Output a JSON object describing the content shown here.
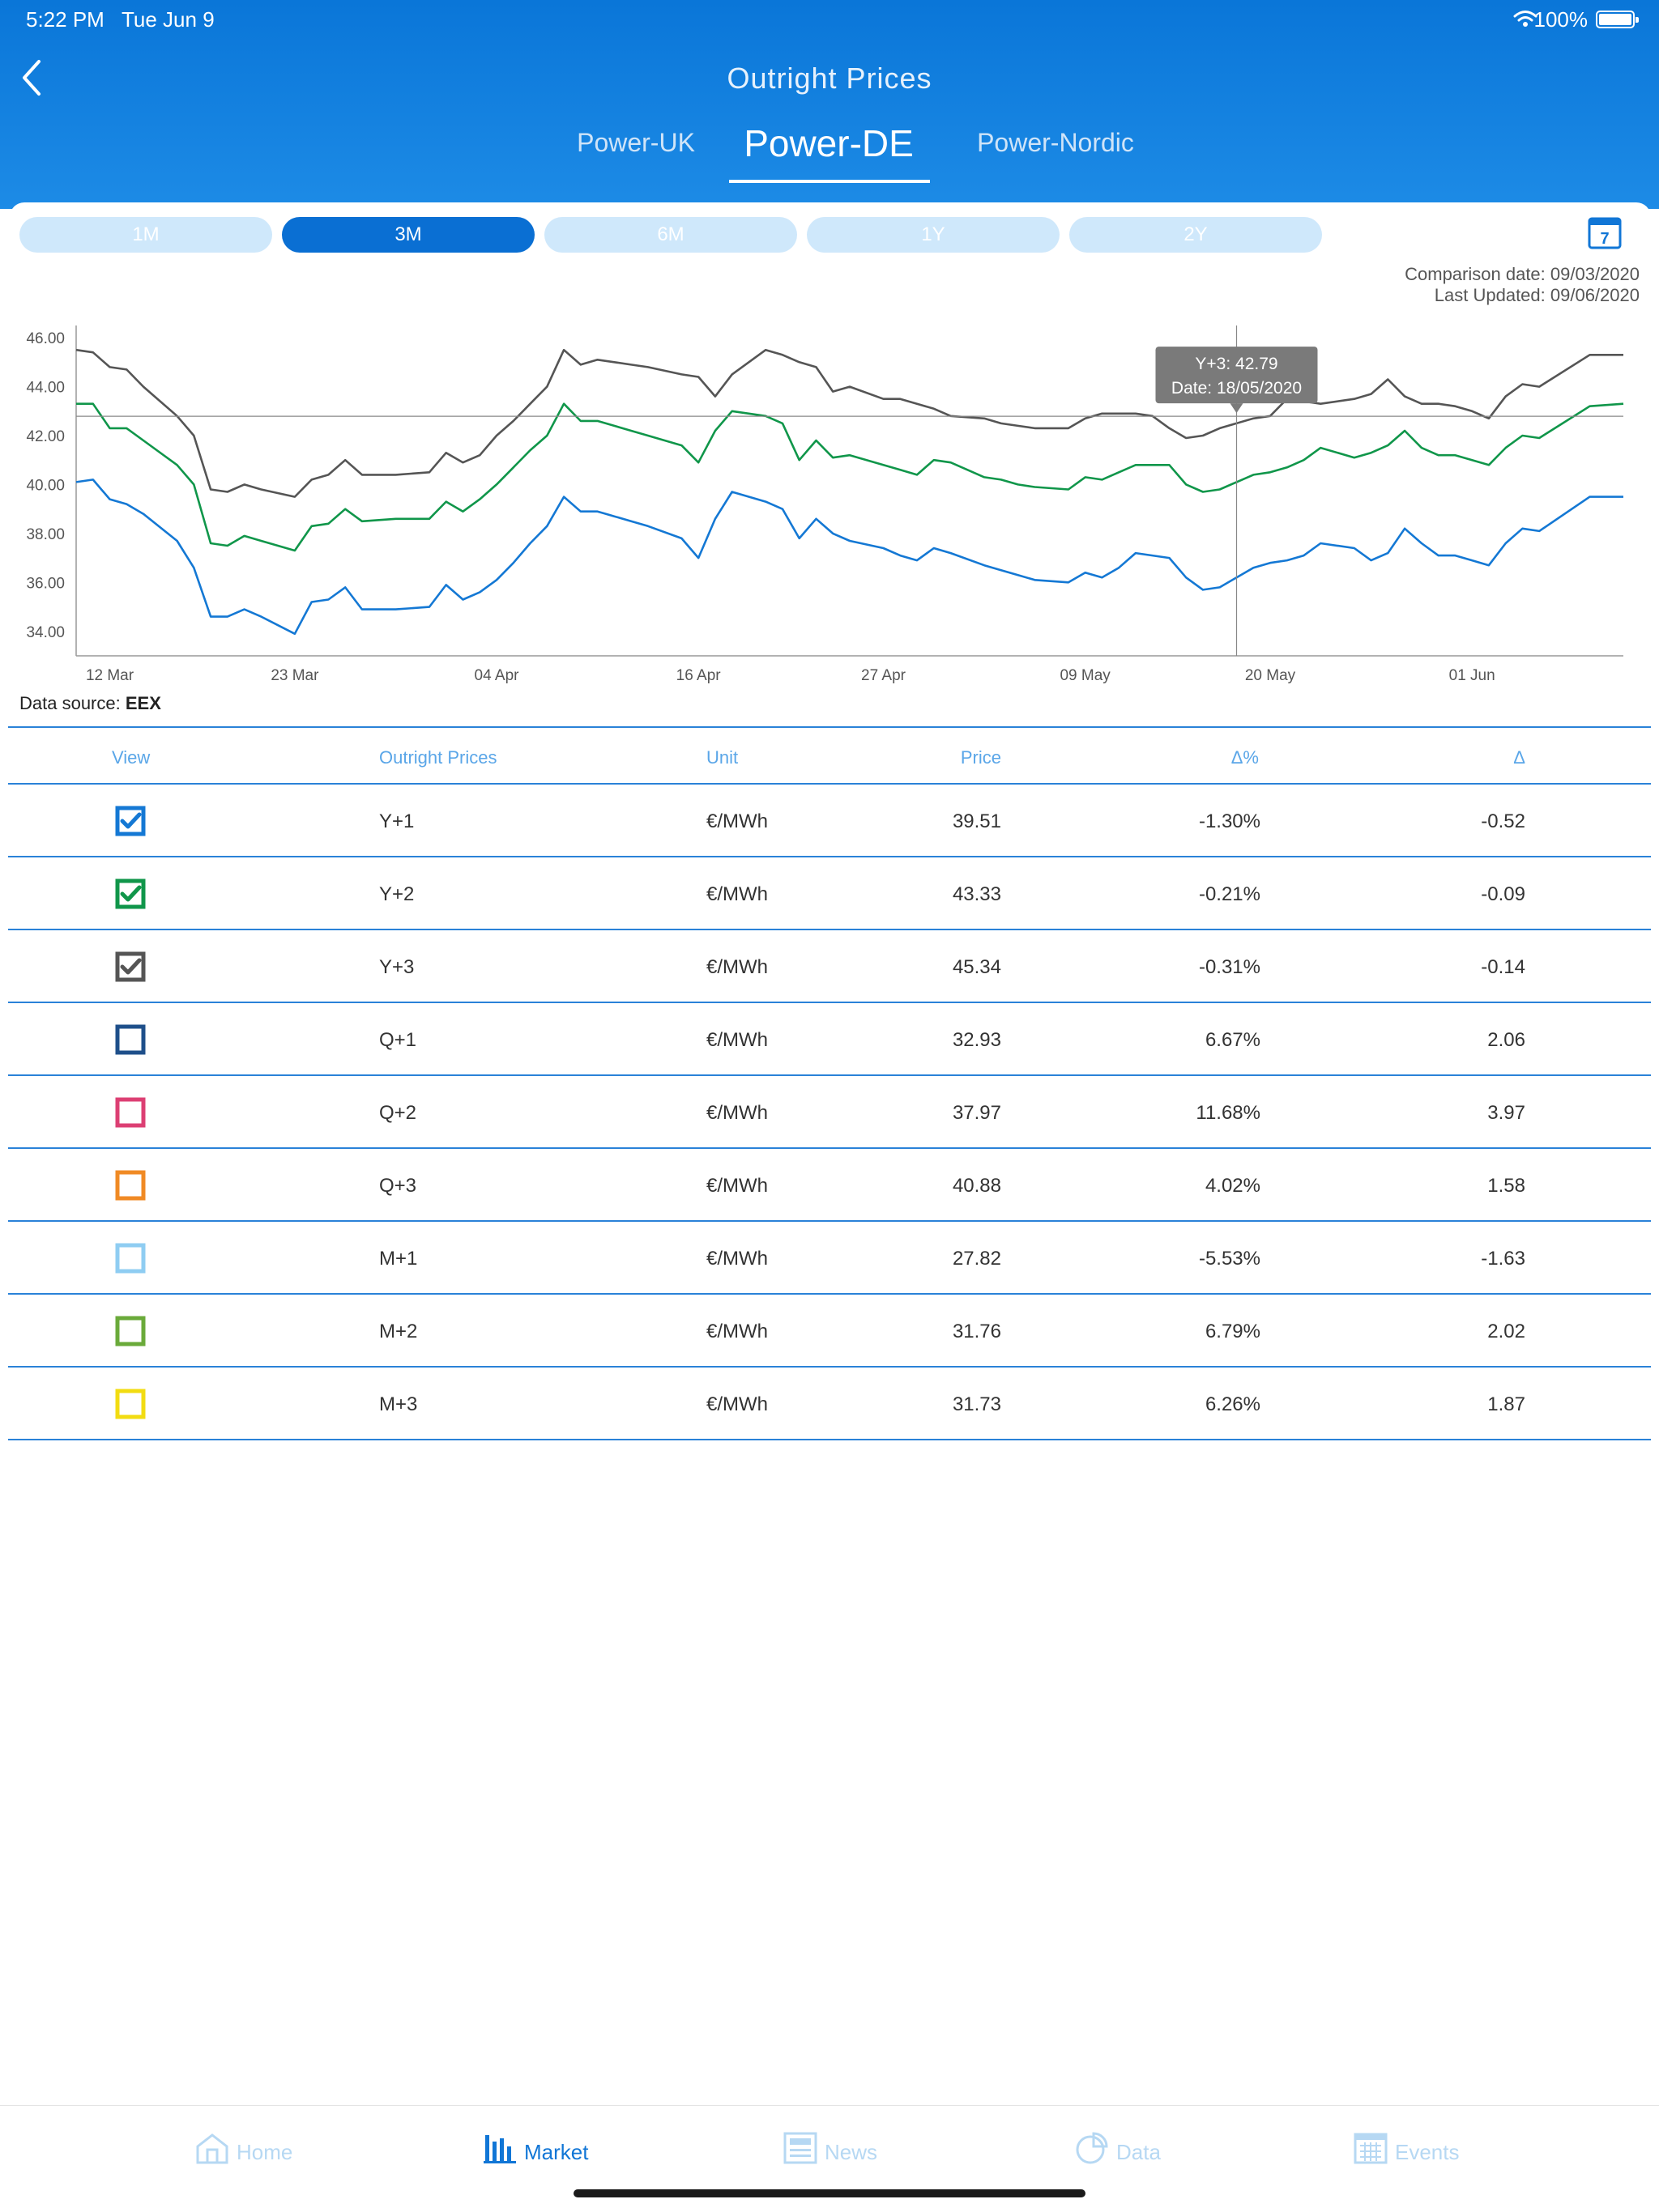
{
  "status_bar": {
    "time": "5:22 PM",
    "date": "Tue Jun 9",
    "battery": "100%"
  },
  "header": {
    "title": "Outright Prices",
    "tabs": [
      {
        "label": "Power-UK"
      },
      {
        "label": "Power-DE"
      },
      {
        "label": "Power-Nordic"
      }
    ],
    "active_tab": "Power-DE"
  },
  "ranges": [
    "1M",
    "3M",
    "6M",
    "1Y",
    "2Y"
  ],
  "active_range": "3M",
  "meta": {
    "comparison_date": "Comparison date: 09/03/2020",
    "last_updated": "Last Updated: 09/06/2020",
    "data_source_label": "Data source: ",
    "data_source_name": "EEX"
  },
  "chart_data": {
    "type": "line",
    "ylim": [
      33,
      46.5
    ],
    "yticks": [
      "46.00",
      "44.00",
      "42.00",
      "40.00",
      "38.00",
      "36.00",
      "34.00"
    ],
    "ytick_values": [
      46,
      44,
      42,
      40,
      38,
      36,
      34
    ],
    "xticks": [
      "12 Mar",
      "23 Mar",
      "04 Apr",
      "16 Apr",
      "27 Apr",
      "09 May",
      "20 May",
      "01 Jun"
    ],
    "xtick_days": [
      2,
      13,
      25,
      37,
      48,
      60,
      71,
      83
    ],
    "x_days_range": [
      0,
      92
    ],
    "x_days_ref": "10 Mar",
    "tooltip": {
      "line1": "Y+3: 42.79",
      "line2": "Date: 18/05/2020",
      "day": 69,
      "value": 42.79
    },
    "series": [
      {
        "name": "Y+3",
        "color": "#555555",
        "x": [
          0,
          1,
          2,
          3,
          4,
          6,
          7,
          8,
          9,
          10,
          11,
          13,
          14,
          15,
          16,
          17,
          19,
          21,
          22,
          23,
          24,
          25,
          26,
          27,
          28,
          29,
          30,
          31,
          32,
          33,
          34,
          36,
          37,
          38,
          39,
          41,
          42,
          43,
          44,
          45,
          46,
          48,
          49,
          50,
          51,
          52,
          54,
          55,
          56,
          57,
          59,
          60,
          61,
          62,
          63,
          64,
          65,
          66,
          67,
          68,
          70,
          71,
          72,
          73,
          74,
          76,
          77,
          78,
          79,
          80,
          81,
          82,
          83,
          84,
          85,
          86,
          87,
          90,
          92
        ],
        "values": [
          45.5,
          45.4,
          44.8,
          44.7,
          44.0,
          42.8,
          42.0,
          39.8,
          39.7,
          40.0,
          39.8,
          39.5,
          40.2,
          40.4,
          41.0,
          40.4,
          40.4,
          40.5,
          41.3,
          40.9,
          41.2,
          42.0,
          42.6,
          43.3,
          44.0,
          45.5,
          44.9,
          45.1,
          45.0,
          44.9,
          44.8,
          44.5,
          44.4,
          43.6,
          44.5,
          45.5,
          45.3,
          45.0,
          44.8,
          43.8,
          44.0,
          43.5,
          43.5,
          43.3,
          43.1,
          42.8,
          42.7,
          42.5,
          42.4,
          42.3,
          42.3,
          42.7,
          42.9,
          42.9,
          42.9,
          42.8,
          42.3,
          41.9,
          42.0,
          42.3,
          42.7,
          42.8,
          43.5,
          43.4,
          43.3,
          43.5,
          43.7,
          44.3,
          43.6,
          43.3,
          43.3,
          43.2,
          43.0,
          42.7,
          43.6,
          44.1,
          44.0,
          45.3,
          45.3
        ]
      },
      {
        "name": "Y+2",
        "color": "#10964a",
        "x": [
          0,
          1,
          2,
          3,
          4,
          6,
          7,
          8,
          9,
          10,
          11,
          13,
          14,
          15,
          16,
          17,
          19,
          21,
          22,
          23,
          24,
          25,
          26,
          27,
          28,
          29,
          30,
          31,
          32,
          33,
          34,
          36,
          37,
          38,
          39,
          41,
          42,
          43,
          44,
          45,
          46,
          48,
          49,
          50,
          51,
          52,
          54,
          55,
          56,
          57,
          59,
          60,
          61,
          62,
          63,
          64,
          65,
          66,
          67,
          68,
          70,
          71,
          72,
          73,
          74,
          76,
          77,
          78,
          79,
          80,
          81,
          82,
          83,
          84,
          85,
          86,
          87,
          90,
          92
        ],
        "values": [
          43.3,
          43.3,
          42.3,
          42.3,
          41.8,
          40.8,
          40.0,
          37.6,
          37.5,
          37.9,
          37.7,
          37.3,
          38.3,
          38.4,
          39.0,
          38.5,
          38.6,
          38.6,
          39.3,
          38.9,
          39.4,
          40.0,
          40.7,
          41.4,
          42.0,
          43.3,
          42.6,
          42.6,
          42.4,
          42.2,
          42.0,
          41.6,
          40.9,
          42.2,
          43.0,
          42.8,
          42.5,
          41.0,
          41.8,
          41.1,
          41.2,
          40.8,
          40.6,
          40.4,
          41.0,
          40.9,
          40.3,
          40.2,
          40.0,
          39.9,
          39.8,
          40.3,
          40.2,
          40.5,
          40.8,
          40.8,
          40.8,
          40.0,
          39.7,
          39.8,
          40.4,
          40.5,
          40.7,
          41.0,
          41.5,
          41.1,
          41.3,
          41.6,
          42.2,
          41.5,
          41.2,
          41.2,
          41.0,
          40.8,
          41.5,
          42.0,
          41.9,
          43.2,
          43.3
        ]
      },
      {
        "name": "Y+1",
        "color": "#1478d4",
        "x": [
          0,
          1,
          2,
          3,
          4,
          6,
          7,
          8,
          9,
          10,
          11,
          13,
          14,
          15,
          16,
          17,
          19,
          21,
          22,
          23,
          24,
          25,
          26,
          27,
          28,
          29,
          30,
          31,
          32,
          33,
          34,
          36,
          37,
          38,
          39,
          41,
          42,
          43,
          44,
          45,
          46,
          48,
          49,
          50,
          51,
          52,
          54,
          55,
          56,
          57,
          59,
          60,
          61,
          62,
          63,
          64,
          65,
          66,
          67,
          68,
          70,
          71,
          72,
          73,
          74,
          76,
          77,
          78,
          79,
          80,
          81,
          82,
          83,
          84,
          85,
          86,
          87,
          90,
          92
        ],
        "values": [
          40.1,
          40.2,
          39.4,
          39.2,
          38.8,
          37.7,
          36.6,
          34.6,
          34.6,
          34.9,
          34.6,
          33.9,
          35.2,
          35.3,
          35.8,
          34.9,
          34.9,
          35.0,
          35.9,
          35.3,
          35.6,
          36.1,
          36.8,
          37.6,
          38.3,
          39.5,
          38.9,
          38.9,
          38.7,
          38.5,
          38.3,
          37.8,
          37.0,
          38.6,
          39.7,
          39.3,
          39.0,
          37.8,
          38.6,
          38.0,
          37.7,
          37.4,
          37.1,
          36.9,
          37.4,
          37.2,
          36.7,
          36.5,
          36.3,
          36.1,
          36.0,
          36.4,
          36.2,
          36.6,
          37.2,
          37.1,
          37.0,
          36.2,
          35.7,
          35.8,
          36.6,
          36.8,
          36.9,
          37.1,
          37.6,
          37.4,
          36.9,
          37.2,
          38.2,
          37.6,
          37.1,
          37.1,
          36.9,
          36.7,
          37.6,
          38.2,
          38.1,
          39.5,
          39.5
        ]
      }
    ]
  },
  "table": {
    "headers": {
      "view": "View",
      "name": "Outright Prices",
      "unit": "Unit",
      "price": "Price",
      "pct": "Δ%",
      "delta": "Δ"
    },
    "rows": [
      {
        "name": "Y+1",
        "unit": "€/MWh",
        "price": "39.51",
        "pct": "-1.30%",
        "delta": "-0.52",
        "checked": true,
        "color": "#1478d4"
      },
      {
        "name": "Y+2",
        "unit": "€/MWh",
        "price": "43.33",
        "pct": "-0.21%",
        "delta": "-0.09",
        "checked": true,
        "color": "#10964a"
      },
      {
        "name": "Y+3",
        "unit": "€/MWh",
        "price": "45.34",
        "pct": "-0.31%",
        "delta": "-0.14",
        "checked": true,
        "color": "#555555"
      },
      {
        "name": "Q+1",
        "unit": "€/MWh",
        "price": "32.93",
        "pct": "6.67%",
        "delta": "2.06",
        "checked": false,
        "color": "#1e4f8a"
      },
      {
        "name": "Q+2",
        "unit": "€/MWh",
        "price": "37.97",
        "pct": "11.68%",
        "delta": "3.97",
        "checked": false,
        "color": "#dc3f73"
      },
      {
        "name": "Q+3",
        "unit": "€/MWh",
        "price": "40.88",
        "pct": "4.02%",
        "delta": "1.58",
        "checked": false,
        "color": "#f08a24"
      },
      {
        "name": "M+1",
        "unit": "€/MWh",
        "price": "27.82",
        "pct": "-5.53%",
        "delta": "-1.63",
        "checked": false,
        "color": "#8fcdf2"
      },
      {
        "name": "M+2",
        "unit": "€/MWh",
        "price": "31.76",
        "pct": "6.79%",
        "delta": "2.02",
        "checked": false,
        "color": "#6aaa3a"
      },
      {
        "name": "M+3",
        "unit": "€/MWh",
        "price": "31.73",
        "pct": "6.26%",
        "delta": "1.87",
        "checked": false,
        "color": "#f2dc12"
      }
    ]
  },
  "bottom_nav": {
    "items": [
      {
        "label": "Home",
        "icon": "home-icon"
      },
      {
        "label": "Market",
        "icon": "bar-chart-icon"
      },
      {
        "label": "News",
        "icon": "news-icon"
      },
      {
        "label": "Data",
        "icon": "pie-chart-icon"
      },
      {
        "label": "Events",
        "icon": "calendar-grid-icon"
      }
    ],
    "active": "Market"
  }
}
